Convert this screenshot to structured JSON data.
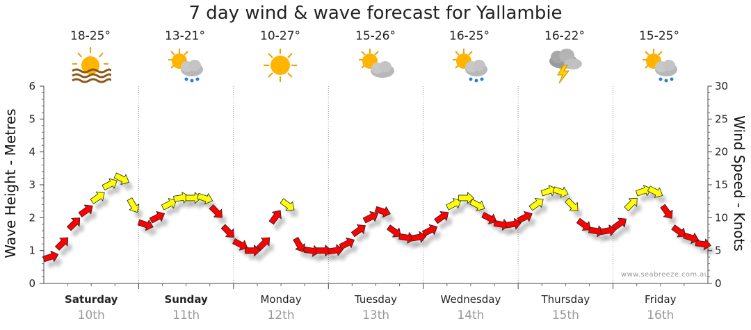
{
  "chart_data": {
    "type": "line",
    "title": "7 day wind & wave forecast for Yallambie",
    "ylabel_left": "Wave Height - Metres",
    "ylabel_right": "Wind Speed - Knots",
    "ylim_left": [
      0,
      6
    ],
    "ylim_right": [
      0,
      30
    ],
    "left_ticks": [
      "0",
      "1",
      "2",
      "3",
      "4",
      "5",
      "6"
    ],
    "right_ticks": [
      "0",
      "5",
      "10",
      "15",
      "20",
      "25",
      "30"
    ],
    "days": [
      {
        "name": "Saturday",
        "date": "10th",
        "bold": true,
        "temp": "18-25°",
        "icon": "sun-haze-icon"
      },
      {
        "name": "Sunday",
        "date": "11th",
        "bold": true,
        "temp": "13-21°",
        "icon": "sun-cloud-rain-icon"
      },
      {
        "name": "Monday",
        "date": "12th",
        "bold": false,
        "temp": "10-27°",
        "icon": "sun-icon"
      },
      {
        "name": "Tuesday",
        "date": "13th",
        "bold": false,
        "temp": "15-26°",
        "icon": "sun-cloud-icon"
      },
      {
        "name": "Wednesday",
        "date": "14th",
        "bold": false,
        "temp": "16-25°",
        "icon": "sun-cloud-rain-icon"
      },
      {
        "name": "Thursday",
        "date": "15th",
        "bold": false,
        "temp": "16-22°",
        "icon": "thunderstorm-icon"
      },
      {
        "name": "Friday",
        "date": "16th",
        "bold": false,
        "temp": "15-25°",
        "icon": "sun-cloud-rain-icon"
      }
    ],
    "wind_series": {
      "name": "Wind speed (knots)",
      "hours": [
        0,
        3,
        6,
        9,
        12,
        15,
        18,
        21,
        24,
        27,
        30,
        33,
        36,
        39,
        42,
        45,
        48,
        51,
        54,
        57,
        60,
        63,
        66,
        69,
        72,
        75,
        78,
        81,
        84,
        87,
        90,
        93,
        96,
        99,
        102,
        105,
        108,
        111,
        114,
        117,
        120,
        123,
        126,
        129,
        132,
        135,
        138,
        141,
        144,
        147,
        150,
        153,
        156,
        159,
        162,
        165
      ],
      "knots": [
        4,
        6,
        9,
        11,
        13,
        15,
        16,
        12,
        9,
        10,
        12,
        13,
        13,
        13,
        11,
        8,
        6,
        5,
        6,
        10,
        12,
        6,
        5,
        5,
        5,
        6,
        8,
        10,
        11,
        8,
        7,
        7,
        8,
        10,
        12,
        13,
        12,
        10,
        9,
        9,
        10,
        12,
        14,
        14,
        12,
        9,
        8,
        8,
        9,
        12,
        14,
        14,
        11,
        8,
        7,
        6
      ],
      "colors": {
        "under_12": "#ff0000",
        "12_to_20": "#ffff00"
      }
    },
    "credit": "www.seabreeze.com.au"
  }
}
